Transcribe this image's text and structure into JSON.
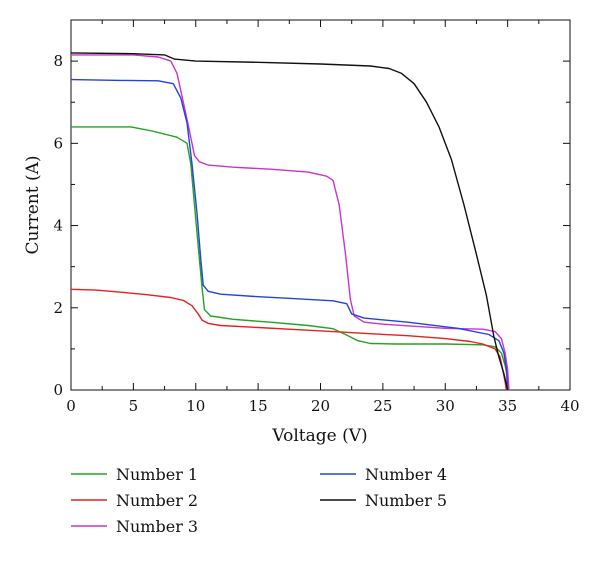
{
  "chart_data": {
    "type": "line",
    "xlabel": "Voltage (V)",
    "ylabel": "Current (A)",
    "xlim": [
      0,
      40
    ],
    "ylim": [
      0,
      9
    ],
    "xticks": [
      0,
      5,
      10,
      15,
      20,
      25,
      30,
      35,
      40
    ],
    "yticks": [
      0,
      2,
      4,
      6,
      8
    ],
    "grid": false,
    "legend_position": "below",
    "series": [
      {
        "name": "Number 1",
        "color": "#22a322",
        "points": [
          [
            0,
            6.4
          ],
          [
            4.8,
            6.4
          ],
          [
            6.5,
            6.3
          ],
          [
            8.5,
            6.15
          ],
          [
            9.3,
            6.0
          ],
          [
            9.6,
            5.5
          ],
          [
            9.9,
            4.5
          ],
          [
            10.2,
            3.5
          ],
          [
            10.5,
            2.5
          ],
          [
            10.7,
            1.95
          ],
          [
            11.2,
            1.8
          ],
          [
            13,
            1.72
          ],
          [
            16,
            1.65
          ],
          [
            19,
            1.57
          ],
          [
            21,
            1.49
          ],
          [
            22,
            1.35
          ],
          [
            23,
            1.2
          ],
          [
            24,
            1.13
          ],
          [
            26,
            1.12
          ],
          [
            30,
            1.12
          ],
          [
            33,
            1.1
          ],
          [
            34,
            1.05
          ],
          [
            34.5,
            0.9
          ],
          [
            34.8,
            0.6
          ],
          [
            35.0,
            0.3
          ],
          [
            35.1,
            0.0
          ]
        ]
      },
      {
        "name": "Number 2",
        "color": "#e32222",
        "points": [
          [
            0,
            2.45
          ],
          [
            2,
            2.43
          ],
          [
            4,
            2.38
          ],
          [
            6,
            2.32
          ],
          [
            8,
            2.25
          ],
          [
            9,
            2.18
          ],
          [
            9.7,
            2.05
          ],
          [
            10.2,
            1.85
          ],
          [
            10.5,
            1.7
          ],
          [
            11,
            1.62
          ],
          [
            12,
            1.57
          ],
          [
            15,
            1.52
          ],
          [
            18,
            1.47
          ],
          [
            21,
            1.42
          ],
          [
            24,
            1.37
          ],
          [
            27,
            1.32
          ],
          [
            30,
            1.25
          ],
          [
            32,
            1.18
          ],
          [
            33,
            1.12
          ],
          [
            34,
            1.0
          ],
          [
            34.4,
            0.8
          ],
          [
            34.6,
            0.5
          ],
          [
            34.8,
            0.2
          ],
          [
            34.9,
            0.0
          ]
        ]
      },
      {
        "name": "Number 3",
        "color": "#cc33cc",
        "points": [
          [
            0,
            8.15
          ],
          [
            5,
            8.15
          ],
          [
            7,
            8.1
          ],
          [
            8,
            8.0
          ],
          [
            8.5,
            7.7
          ],
          [
            9,
            7.0
          ],
          [
            9.5,
            6.3
          ],
          [
            9.9,
            5.7
          ],
          [
            10.3,
            5.55
          ],
          [
            11,
            5.47
          ],
          [
            13,
            5.42
          ],
          [
            16,
            5.37
          ],
          [
            19,
            5.3
          ],
          [
            20.5,
            5.2
          ],
          [
            21,
            5.1
          ],
          [
            21.5,
            4.5
          ],
          [
            22,
            3.3
          ],
          [
            22.4,
            2.2
          ],
          [
            22.7,
            1.8
          ],
          [
            23.5,
            1.65
          ],
          [
            25,
            1.6
          ],
          [
            30,
            1.5
          ],
          [
            33,
            1.48
          ],
          [
            34,
            1.42
          ],
          [
            34.5,
            1.25
          ],
          [
            34.8,
            0.9
          ],
          [
            35.0,
            0.5
          ],
          [
            35.1,
            0.0
          ]
        ]
      },
      {
        "name": "Number 4",
        "color": "#2244dd",
        "points": [
          [
            0,
            7.55
          ],
          [
            4,
            7.53
          ],
          [
            7,
            7.52
          ],
          [
            8.2,
            7.45
          ],
          [
            8.8,
            7.1
          ],
          [
            9.3,
            6.5
          ],
          [
            9.7,
            5.5
          ],
          [
            10.1,
            4.3
          ],
          [
            10.4,
            3.2
          ],
          [
            10.6,
            2.55
          ],
          [
            11,
            2.4
          ],
          [
            12,
            2.33
          ],
          [
            15,
            2.27
          ],
          [
            18,
            2.22
          ],
          [
            21,
            2.17
          ],
          [
            22.1,
            2.1
          ],
          [
            22.5,
            1.85
          ],
          [
            23.5,
            1.75
          ],
          [
            27,
            1.65
          ],
          [
            31,
            1.5
          ],
          [
            33.5,
            1.35
          ],
          [
            34.3,
            1.2
          ],
          [
            34.7,
            0.9
          ],
          [
            34.9,
            0.5
          ],
          [
            35.0,
            0.0
          ]
        ]
      },
      {
        "name": "Number 5",
        "color": "#111111",
        "points": [
          [
            0,
            8.2
          ],
          [
            5,
            8.18
          ],
          [
            7.5,
            8.15
          ],
          [
            8.3,
            8.05
          ],
          [
            10,
            8.0
          ],
          [
            15,
            7.97
          ],
          [
            20,
            7.93
          ],
          [
            24,
            7.88
          ],
          [
            25.5,
            7.82
          ],
          [
            26.5,
            7.7
          ],
          [
            27.5,
            7.45
          ],
          [
            28.5,
            7.0
          ],
          [
            29.5,
            6.4
          ],
          [
            30.5,
            5.6
          ],
          [
            31.5,
            4.5
          ],
          [
            32.5,
            3.3
          ],
          [
            33.3,
            2.3
          ],
          [
            33.9,
            1.3
          ],
          [
            34.3,
            0.8
          ],
          [
            34.7,
            0.4
          ],
          [
            35.0,
            0.0
          ]
        ]
      }
    ]
  }
}
